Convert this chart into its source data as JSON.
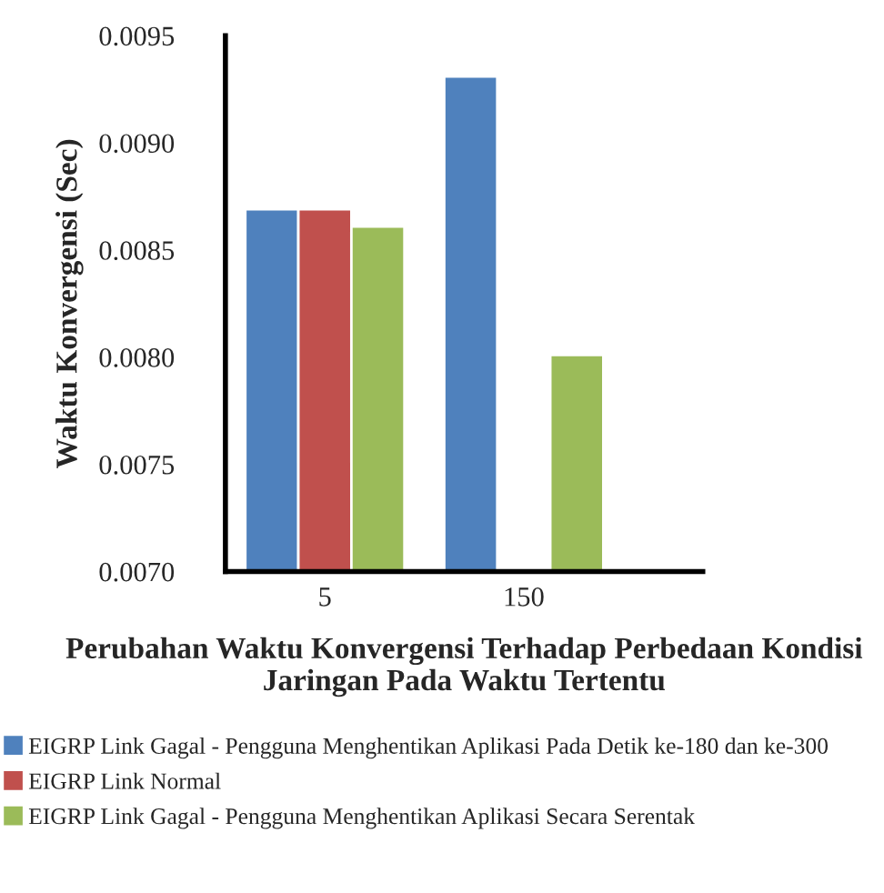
{
  "chart_data": {
    "type": "bar",
    "xlabel": "Perubahan Waktu Konvergensi Terhadap Perbedaan Kondisi Jaringan Pada Waktu Tertentu",
    "ylabel": "Waktu Konvergensi (Sec)",
    "categories": [
      "5",
      "150"
    ],
    "series": [
      {
        "name": "EIGRP Link Gagal - Pengguna Menghentikan Aplikasi Pada Detik ke-180 dan ke-300",
        "color": "#4f81bd",
        "values": [
          0.00869,
          0.00931
        ]
      },
      {
        "name": "EIGRP Link Normal",
        "color": "#c0504d",
        "values": [
          0.00869,
          null
        ]
      },
      {
        "name": "EIGRP Link Gagal - Pengguna Menghentikan Aplikasi Secara Serentak",
        "color": "#9bbb59",
        "values": [
          0.00861,
          0.00801
        ]
      }
    ],
    "ylim": [
      0.007,
      0.0095
    ],
    "yticks": [
      {
        "value": 0.007,
        "label": "0.0070"
      },
      {
        "value": 0.0075,
        "label": "0.0075"
      },
      {
        "value": 0.008,
        "label": "0.0080"
      },
      {
        "value": 0.0085,
        "label": "0.0085"
      },
      {
        "value": 0.009,
        "label": "0.0090"
      },
      {
        "value": 0.0095,
        "label": "0.0095"
      }
    ],
    "grid": false,
    "legend": "bottom"
  }
}
